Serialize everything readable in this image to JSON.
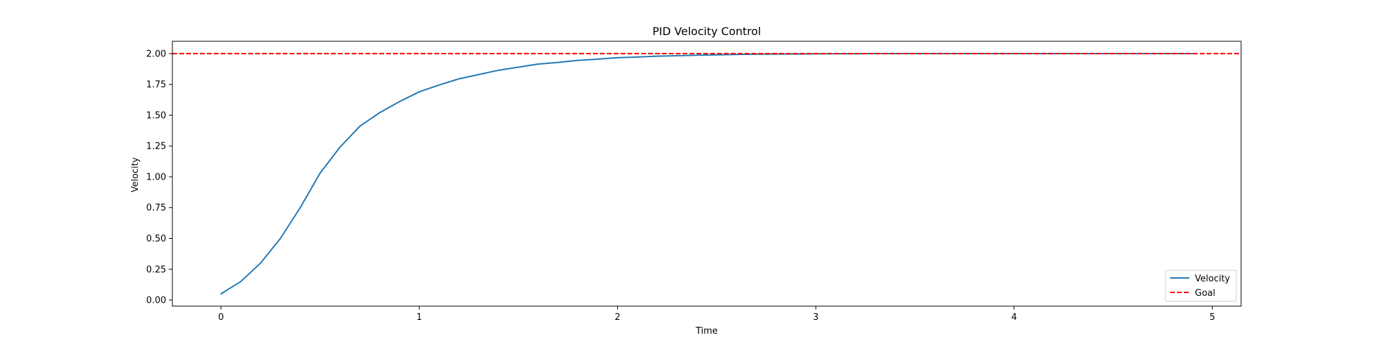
{
  "chart_data": {
    "type": "line",
    "title": "PID Velocity Control",
    "xlabel": "Time",
    "ylabel": "Velocity",
    "xlim": [
      -0.245,
      5.145
    ],
    "ylim": [
      -0.05,
      2.1
    ],
    "xticks": [
      0,
      1,
      2,
      3,
      4,
      5
    ],
    "xtick_labels": [
      "0",
      "1",
      "2",
      "3",
      "4",
      "5"
    ],
    "yticks": [
      0.0,
      0.25,
      0.5,
      0.75,
      1.0,
      1.25,
      1.5,
      1.75,
      2.0
    ],
    "ytick_labels": [
      "0.00",
      "0.25",
      "0.50",
      "0.75",
      "1.00",
      "1.25",
      "1.50",
      "1.75",
      "2.00"
    ],
    "grid": false,
    "legend_position": "lower-right",
    "series": [
      {
        "name": "Velocity",
        "color": "#1f77b4",
        "style": "solid",
        "x": [
          0.0,
          0.1,
          0.2,
          0.3,
          0.4,
          0.5,
          0.6,
          0.7,
          0.8,
          0.9,
          1.0,
          1.1,
          1.2,
          1.3,
          1.4,
          1.5,
          1.6,
          1.7,
          1.8,
          1.9,
          2.0,
          2.1,
          2.2,
          2.3,
          2.4,
          2.5,
          2.6,
          2.7,
          2.8,
          2.9,
          3.0,
          3.1,
          3.2,
          3.3,
          3.4,
          3.5,
          3.6,
          3.7,
          3.8,
          3.9,
          4.0,
          4.1,
          4.2,
          4.3,
          4.4,
          4.5,
          4.6,
          4.7,
          4.8,
          4.9
        ],
        "y": [
          0.05,
          0.15,
          0.3,
          0.5,
          0.75,
          1.03,
          1.24,
          1.41,
          1.52,
          1.61,
          1.69,
          1.745,
          1.795,
          1.83,
          1.865,
          1.89,
          1.915,
          1.928,
          1.945,
          1.955,
          1.967,
          1.972,
          1.979,
          1.983,
          1.987,
          1.99,
          1.993,
          1.995,
          1.996,
          1.997,
          1.998,
          1.999,
          1.999,
          2.0,
          2.0,
          2.0,
          2.0,
          2.0,
          2.0,
          2.0,
          2.0,
          2.0,
          2.0,
          2.0,
          2.0,
          2.0,
          2.0,
          2.0,
          2.0,
          2.0
        ]
      },
      {
        "name": "Goal",
        "color": "#ff0000",
        "style": "dashed",
        "type": "hline",
        "y": 2.0
      }
    ]
  }
}
